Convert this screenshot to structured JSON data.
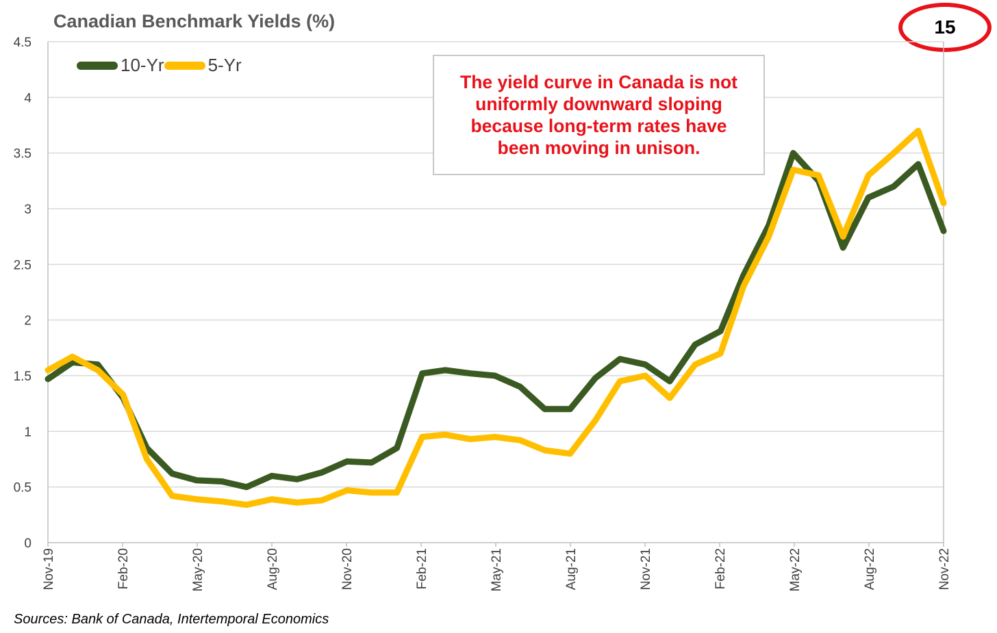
{
  "header": {
    "title": "Canadian Benchmark Yields (%)",
    "badge": "15"
  },
  "annotation": {
    "text": "The yield curve in Canada is not uniformly downward sloping because long-term rates have been moving in unison."
  },
  "footer": {
    "source": "Sources: Bank of Canada, Intertemporal Economics"
  },
  "colors": {
    "ten_year": "#3a5a22",
    "five_year": "#ffbf00",
    "annotation_text": "#e8121a",
    "badge_ring": "#e8121a",
    "grid": "#d9d9d9"
  },
  "chart_data": {
    "type": "line",
    "title": "Canadian Benchmark Yields (%)",
    "xlabel": "",
    "ylabel": "",
    "ylim": [
      0,
      4.5
    ],
    "yticks": [
      "0",
      "0.5",
      "1",
      "1.5",
      "2",
      "2.5",
      "3",
      "3.5",
      "4",
      "4.5"
    ],
    "xticks": [
      "Nov-19",
      "Feb-20",
      "May-20",
      "Aug-20",
      "Nov-20",
      "Feb-21",
      "May-21",
      "Aug-21",
      "Nov-21",
      "Feb-22",
      "May-22",
      "Aug-22",
      "Nov-22"
    ],
    "grid": "horizontal",
    "legend": "top-left",
    "x": [
      "2019-11-01",
      "2019-12-01",
      "2020-01-01",
      "2020-02-01",
      "2020-03-01",
      "2020-04-01",
      "2020-05-01",
      "2020-06-01",
      "2020-07-01",
      "2020-08-01",
      "2020-09-01",
      "2020-10-01",
      "2020-11-01",
      "2020-12-01",
      "2021-01-01",
      "2021-02-01",
      "2021-03-01",
      "2021-04-01",
      "2021-05-01",
      "2021-06-01",
      "2021-07-01",
      "2021-08-01",
      "2021-09-01",
      "2021-10-01",
      "2021-11-01",
      "2021-12-01",
      "2022-01-01",
      "2022-02-01",
      "2022-03-01",
      "2022-04-01",
      "2022-05-01",
      "2022-06-01",
      "2022-07-01",
      "2022-08-01",
      "2022-09-01",
      "2022-10-01",
      "2022-11-01"
    ],
    "series": [
      {
        "name": "10-Yr",
        "values": [
          1.47,
          1.62,
          1.6,
          1.3,
          0.85,
          0.62,
          0.56,
          0.55,
          0.5,
          0.6,
          0.57,
          0.63,
          0.73,
          0.72,
          0.85,
          1.52,
          1.55,
          1.52,
          1.5,
          1.4,
          1.2,
          1.2,
          1.48,
          1.65,
          1.6,
          1.45,
          1.78,
          1.9,
          2.4,
          2.85,
          3.5,
          3.25,
          2.65,
          3.1,
          3.2,
          3.4,
          2.8
        ]
      },
      {
        "name": "5-Yr",
        "values": [
          1.55,
          1.67,
          1.55,
          1.33,
          0.75,
          0.42,
          0.39,
          0.37,
          0.34,
          0.39,
          0.36,
          0.38,
          0.47,
          0.45,
          0.45,
          0.95,
          0.97,
          0.93,
          0.95,
          0.92,
          0.83,
          0.8,
          1.1,
          1.45,
          1.5,
          1.3,
          1.6,
          1.7,
          2.3,
          2.75,
          3.35,
          3.3,
          2.75,
          3.3,
          3.5,
          3.7,
          3.05
        ]
      }
    ]
  }
}
